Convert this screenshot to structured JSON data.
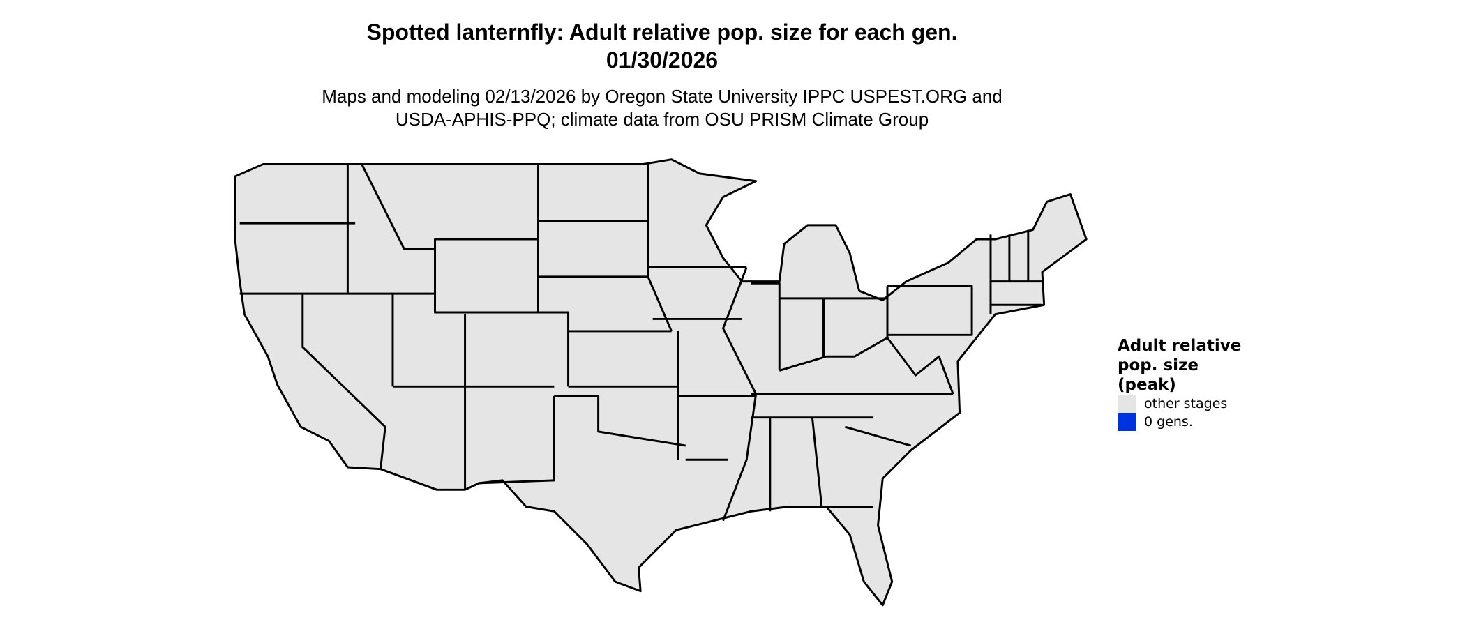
{
  "title": {
    "line1": "Spotted lanternfly: Adult relative pop. size for each gen.",
    "line2": "01/30/2026"
  },
  "subtitle": {
    "line1": "Maps and modeling 02/13/2026 by Oregon State University IPPC USPEST.ORG and",
    "line2": "USDA-APHIS-PPQ; climate data from OSU PRISM Climate Group"
  },
  "map": {
    "region": "contiguous United States",
    "fill_color": "#e5e5e5",
    "border_color": "#000000"
  },
  "legend": {
    "title": "Adult relative pop. size (peak)",
    "items": [
      {
        "label": "other stages",
        "color": "#e5e5e5"
      },
      {
        "label": "0 gens.",
        "color": "#0033dd"
      }
    ]
  }
}
